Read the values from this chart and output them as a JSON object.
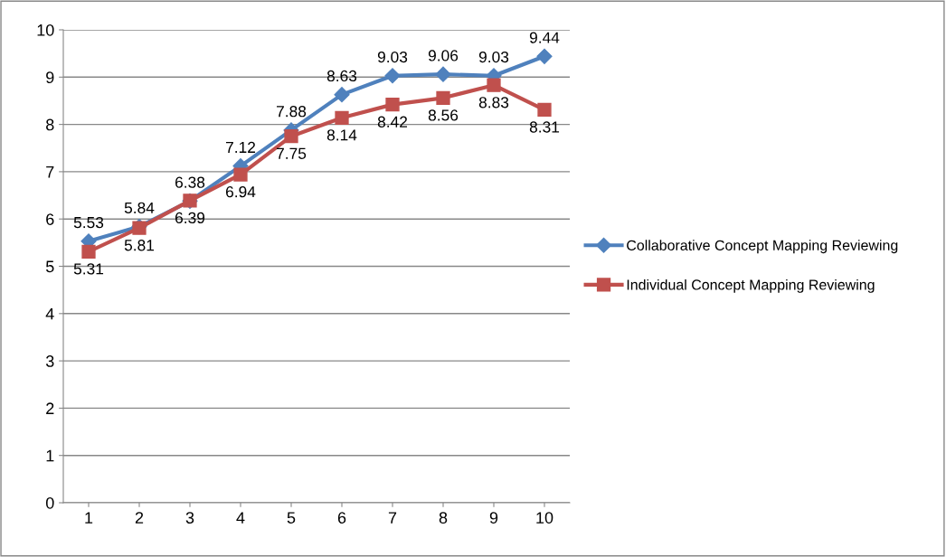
{
  "chart_data": {
    "type": "line",
    "categories": [
      "1",
      "2",
      "3",
      "4",
      "5",
      "6",
      "7",
      "8",
      "9",
      "10"
    ],
    "series": [
      {
        "name": "Collaborative Concept Mapping Reviewing",
        "color": "#4f81bd",
        "marker": "diamond",
        "values": [
          5.53,
          5.84,
          6.38,
          7.12,
          7.88,
          8.63,
          9.03,
          9.06,
          9.03,
          9.44
        ]
      },
      {
        "name": "Individual Concept Mapping Reviewing",
        "color": "#c0504d",
        "marker": "square",
        "values": [
          5.31,
          5.81,
          6.39,
          6.94,
          7.75,
          8.14,
          8.42,
          8.56,
          8.83,
          8.31
        ]
      }
    ],
    "ylim": [
      0,
      10
    ],
    "yticks": [
      0,
      1,
      2,
      3,
      4,
      5,
      6,
      7,
      8,
      9,
      10
    ],
    "grid": "y",
    "legend": "right",
    "data_labels": true,
    "line_style": "solid"
  }
}
